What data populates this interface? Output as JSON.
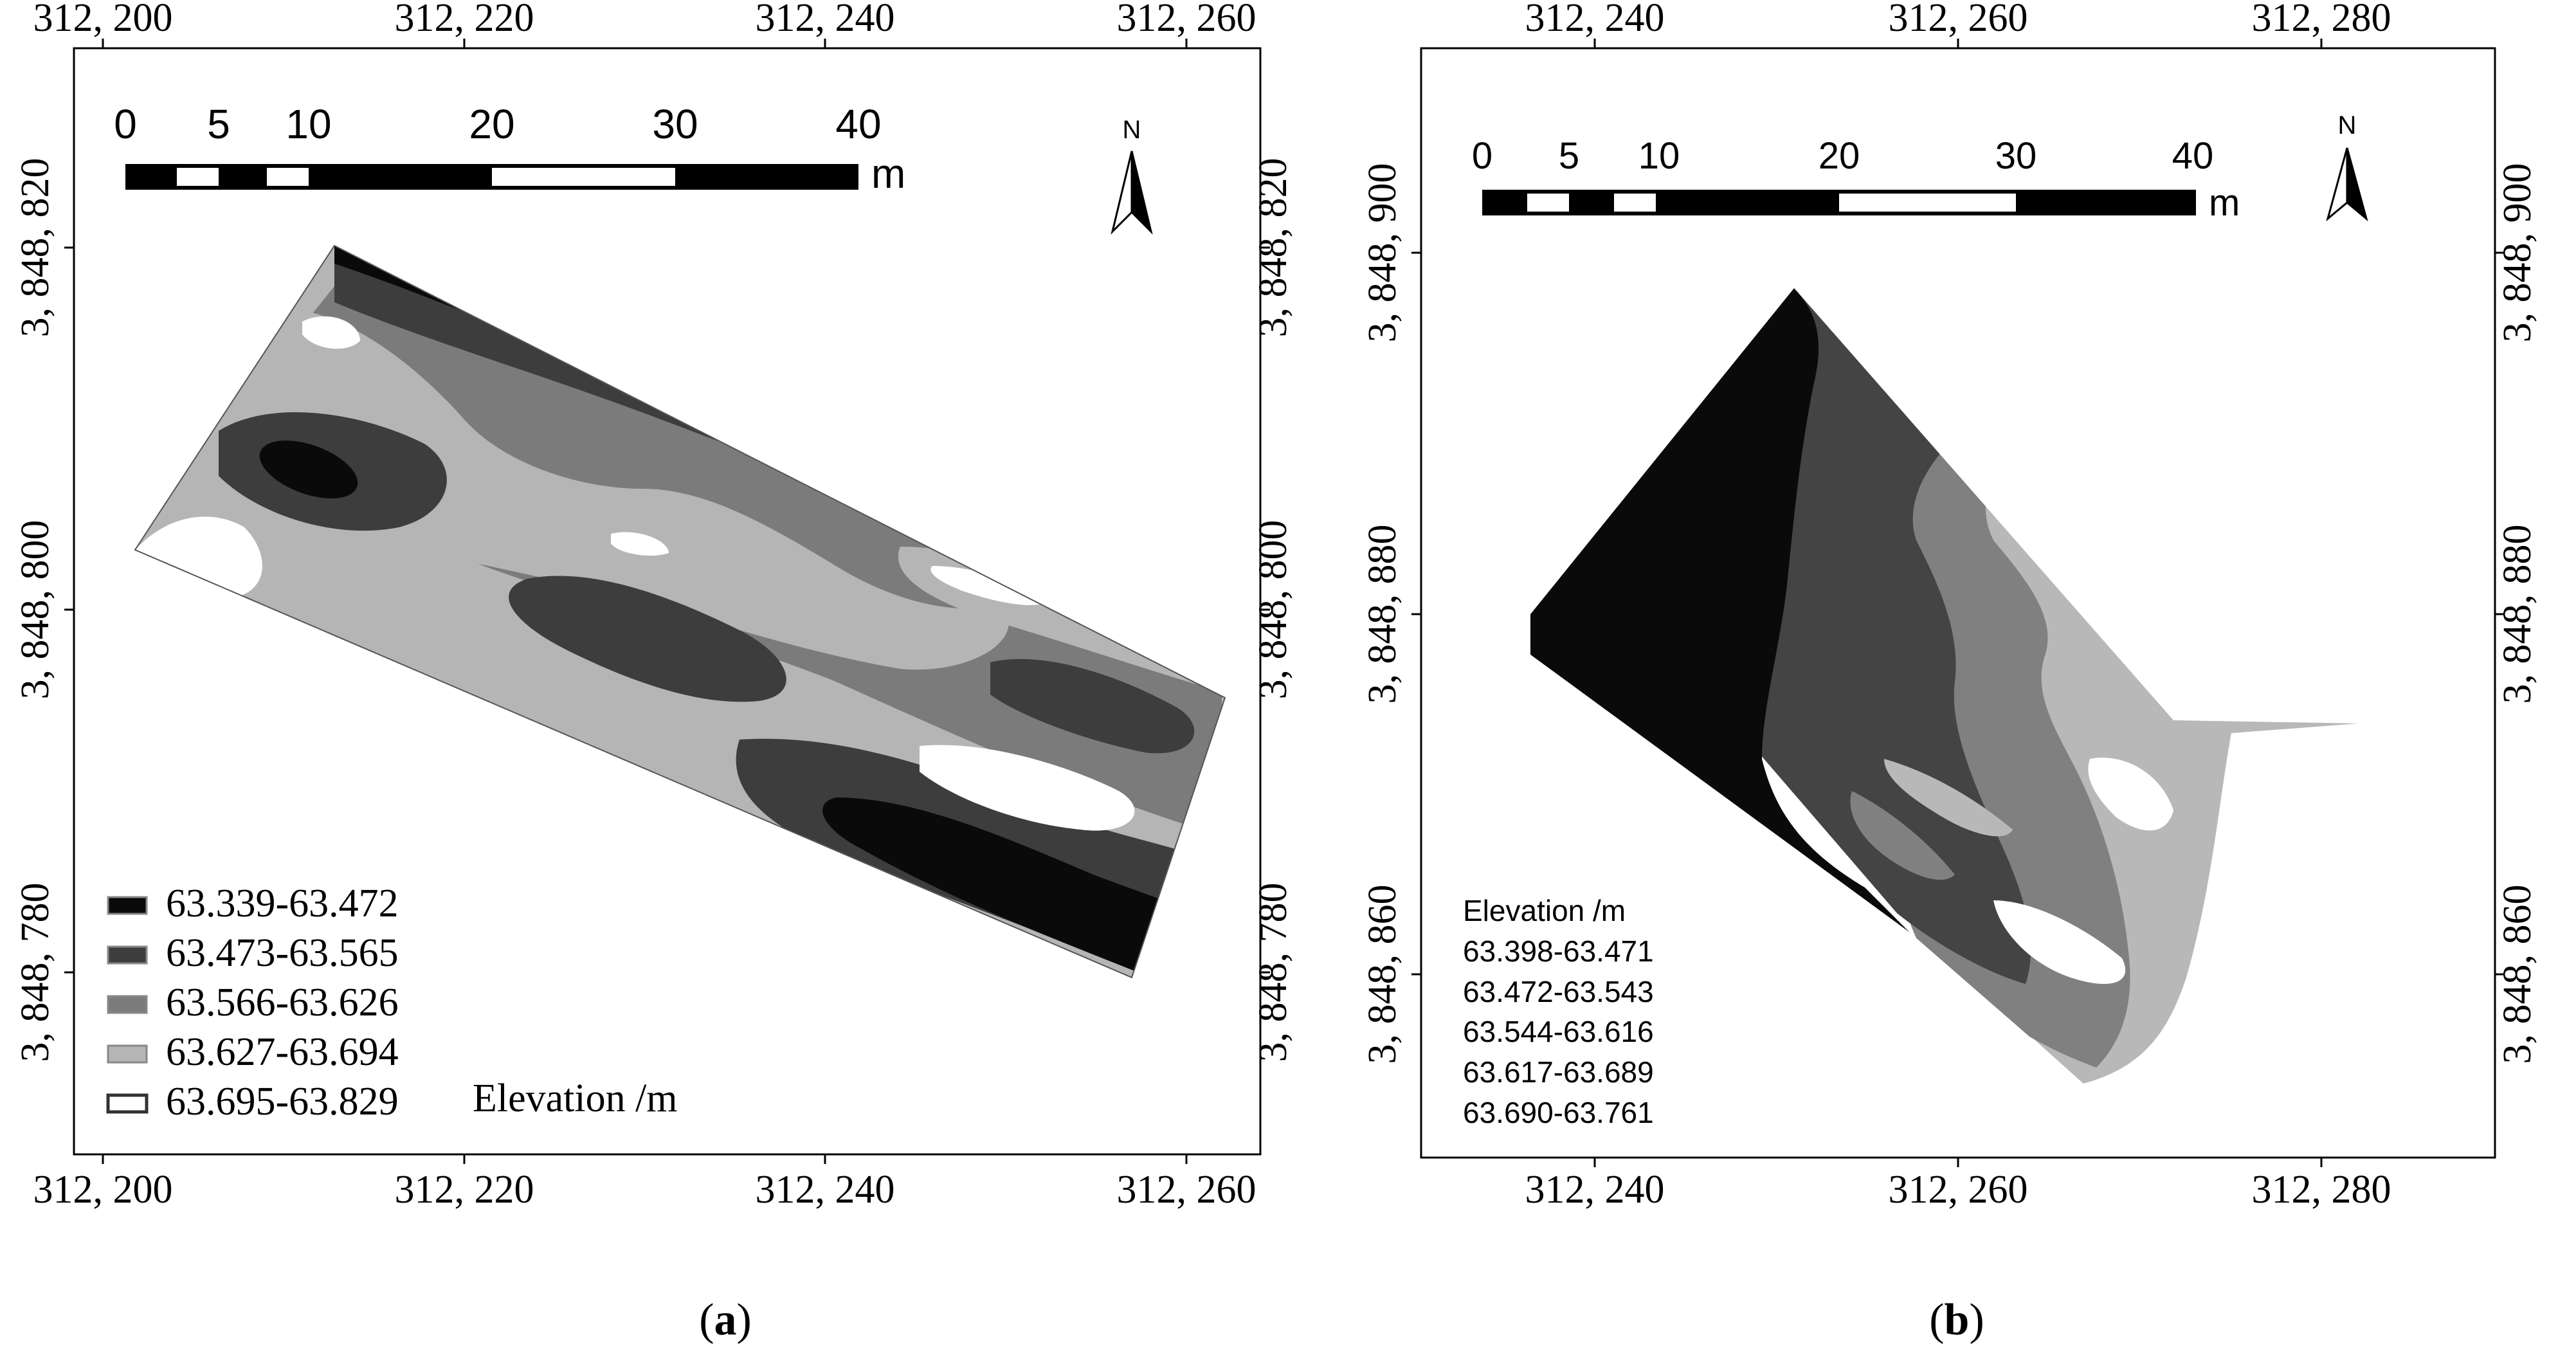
{
  "panel_a": {
    "caption": "a",
    "x_ticks": [
      "312, 200",
      "312, 220",
      "312, 240",
      "312, 260"
    ],
    "y_ticks": [
      "3, 848, 820",
      "3, 848, 800",
      "3, 848, 780"
    ],
    "scale_labels": [
      "0",
      "5",
      "10",
      "20",
      "30",
      "40"
    ],
    "scale_unit": "m",
    "north_label": "N",
    "legend_title": "Elevation /m",
    "legend": [
      {
        "label": "63.339-63.472",
        "color": "#0a0a0a"
      },
      {
        "label": "63.473-63.565",
        "color": "#3d3d3d"
      },
      {
        "label": "63.566-63.626",
        "color": "#7b7b7b"
      },
      {
        "label": "63.627-63.694",
        "color": "#b5b5b5"
      },
      {
        "label": "63.695-63.829",
        "color": "#ffffff"
      }
    ]
  },
  "panel_b": {
    "caption": "b",
    "x_ticks": [
      "312, 240",
      "312, 260",
      "312, 280"
    ],
    "y_ticks": [
      "3, 848, 900",
      "3, 848, 880",
      "3, 848, 860"
    ],
    "scale_labels": [
      "0",
      "5",
      "10",
      "20",
      "30",
      "40"
    ],
    "scale_unit": "m",
    "north_label": "N",
    "legend_title": "Elevation /m",
    "legend": [
      {
        "label": "63.398-63.471",
        "color": "#0a0a0a"
      },
      {
        "label": "63.472-63.543",
        "color": "#444444"
      },
      {
        "label": "63.544-63.616",
        "color": "#808080"
      },
      {
        "label": "63.617-63.689",
        "color": "#b8b8b8"
      },
      {
        "label": "63.690-63.761",
        "color": "#ffffff"
      }
    ]
  }
}
